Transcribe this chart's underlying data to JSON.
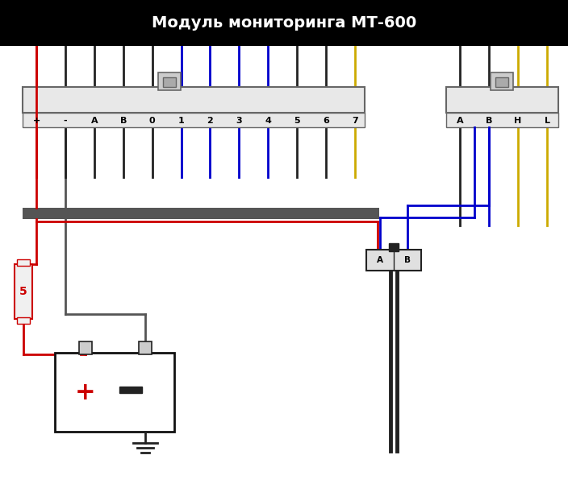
{
  "title": "Модуль мониторинга МТ-600",
  "title_bg": "#000000",
  "title_fg": "#ffffff",
  "bg": "#ffffff",
  "conn1_labels": [
    "+",
    "-",
    "A",
    "B",
    "0",
    "1",
    "2",
    "3",
    "4",
    "5",
    "6",
    "7"
  ],
  "conn2_labels": [
    "A",
    "B",
    "H",
    "L"
  ],
  "fuse_label": "5",
  "red": "#cc0000",
  "blue": "#0000cc",
  "black": "#222222",
  "yellow": "#ccaa00",
  "dark_gray": "#555555",
  "connector_fill": "#e8e8e8",
  "connector_edge": "#666666",
  "latch_fill": "#cccccc",
  "latch_inner": "#aaaaaa",
  "bus_color": "#777777",
  "sensor_fill": "#e0e0e0",
  "battery_fill": "#ffffff",
  "battery_edge": "#111111",
  "fuse_fill": "#f0f0f0"
}
